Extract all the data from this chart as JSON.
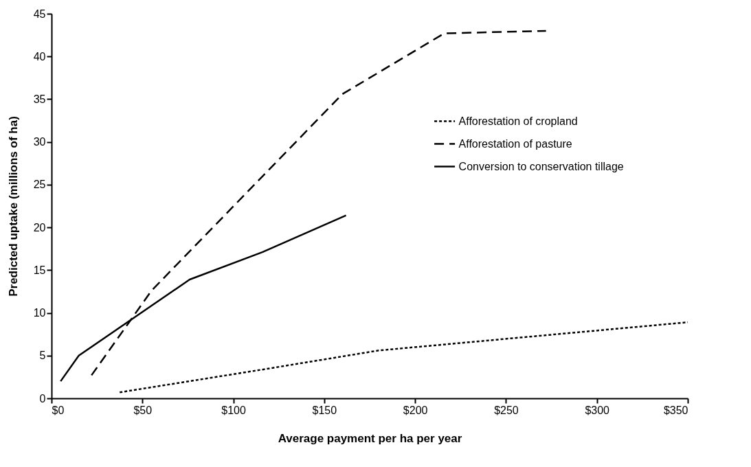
{
  "chart_data": {
    "type": "line",
    "xlabel": "Average payment per ha per year",
    "ylabel": "Predicted uptake (millions of ha)",
    "xlim": [
      0,
      350
    ],
    "xticks": [
      {
        "value": 0,
        "label": "$0"
      },
      {
        "value": 50,
        "label": "$50"
      },
      {
        "value": 100,
        "label": "$100"
      },
      {
        "value": 150,
        "label": "$150"
      },
      {
        "value": 200,
        "label": "$200"
      },
      {
        "value": 250,
        "label": "$250"
      },
      {
        "value": 300,
        "label": "$300"
      },
      {
        "value": 350,
        "label": "$350"
      }
    ],
    "ylim": [
      0,
      45
    ],
    "yticks": [
      0,
      5,
      10,
      15,
      20,
      25,
      30,
      35,
      40,
      45
    ],
    "grid": false,
    "legend": "right",
    "marker": "none",
    "series": [
      {
        "name": "Afforestation of cropland",
        "color": "#000000",
        "line_style": "dotted",
        "x": [
          37.5,
          117,
          180,
          350
        ],
        "values": [
          0.7,
          3.4,
          5.6,
          8.9
        ]
      },
      {
        "name": "Afforestation of pasture",
        "color": "#000000",
        "line_style": "dashed",
        "x": [
          22,
          55,
          160,
          216,
          272
        ],
        "values": [
          2.7,
          12.6,
          35.6,
          42.7,
          43
        ]
      },
      {
        "name": "Conversion to conservation tillage",
        "color": "#000000",
        "line_style": "solid",
        "x": [
          5,
          15,
          76,
          116,
          162
        ],
        "values": [
          2,
          5,
          13.9,
          17.1,
          21.4
        ]
      }
    ]
  }
}
